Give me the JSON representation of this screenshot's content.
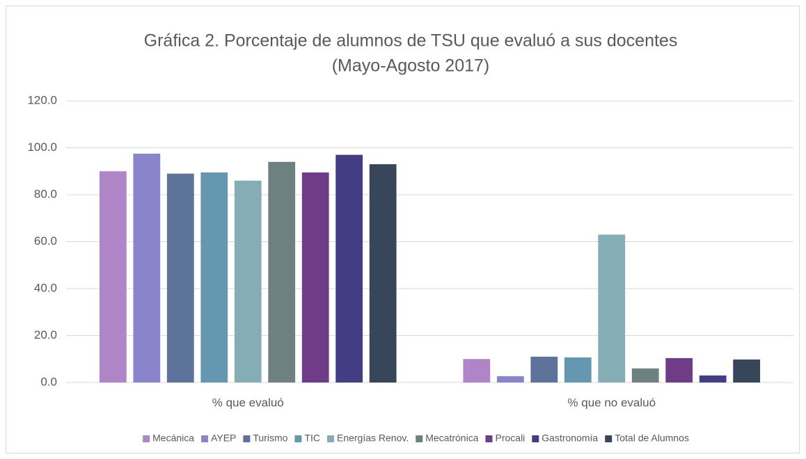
{
  "chart_data": {
    "type": "bar",
    "title": [
      "Gráfica 2. Porcentaje de alumnos de TSU que evaluó a sus docentes",
      "(Mayo-Agosto 2017)"
    ],
    "categories": [
      "% que evaluó",
      "% que  no evaluó"
    ],
    "series": [
      {
        "name": "Mecánica",
        "color": "#b085c8",
        "values": [
          90,
          10
        ]
      },
      {
        "name": "AYEP",
        "color": "#8a84cc",
        "values": [
          97.5,
          2.7
        ]
      },
      {
        "name": "Turismo",
        "color": "#5e7399",
        "values": [
          89,
          11
        ]
      },
      {
        "name": "TIC",
        "color": "#6598b0",
        "values": [
          89.5,
          10.7
        ]
      },
      {
        "name": "Energías Renov.",
        "color": "#84adb6",
        "values": [
          86,
          63
        ]
      },
      {
        "name": "Mecatrónica",
        "color": "#6e8080",
        "values": [
          94,
          6
        ]
      },
      {
        "name": "Procali",
        "color": "#6f3c87",
        "values": [
          89.5,
          10.4
        ]
      },
      {
        "name": "Gastronomía",
        "color": "#433d85",
        "values": [
          97,
          3
        ]
      },
      {
        "name": "Total de Alumnos",
        "color": "#374659",
        "values": [
          93,
          9.8
        ]
      }
    ],
    "ylim": [
      0,
      120
    ],
    "yticks": [
      {
        "value": 0,
        "label": "0.0"
      },
      {
        "value": 20,
        "label": "20.0"
      },
      {
        "value": 40,
        "label": "40.0"
      },
      {
        "value": 60,
        "label": "60.0"
      },
      {
        "value": 80,
        "label": "80.0"
      },
      {
        "value": 100,
        "label": "100.0"
      },
      {
        "value": 120,
        "label": "120.0"
      }
    ],
    "grid": true,
    "legend": "bottom"
  }
}
